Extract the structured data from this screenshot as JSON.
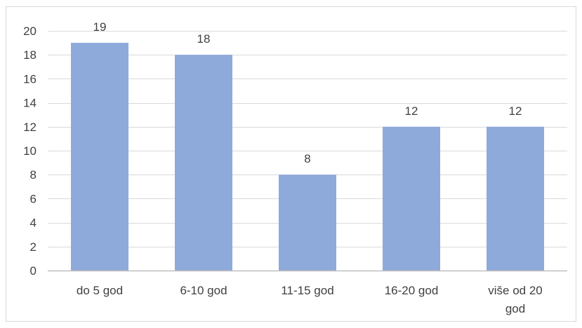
{
  "chart_data": {
    "type": "bar",
    "categories": [
      "do 5 god",
      "6-10 god",
      "11-15 god",
      "16-20 god",
      "više od 20 god"
    ],
    "category_lines": [
      [
        "do 5 god"
      ],
      [
        "6-10 god"
      ],
      [
        "11-15 god"
      ],
      [
        "16-20 god"
      ],
      [
        "više od 20",
        "god"
      ]
    ],
    "values": [
      19,
      18,
      8,
      12,
      12
    ],
    "data_labels": [
      "19",
      "18",
      "8",
      "12",
      "12"
    ],
    "y_ticks": [
      "0",
      "2",
      "4",
      "6",
      "8",
      "10",
      "12",
      "14",
      "16",
      "18",
      "20"
    ],
    "ylim": [
      0,
      20
    ],
    "title": "",
    "xlabel": "",
    "ylabel": "",
    "grid": true,
    "legend": "none",
    "colors": {
      "bar": "#8EAADB",
      "grid": "#D9D9D9",
      "axis": "#BFBFBF",
      "frame": "#D9D9D9",
      "text": "#404040"
    }
  }
}
